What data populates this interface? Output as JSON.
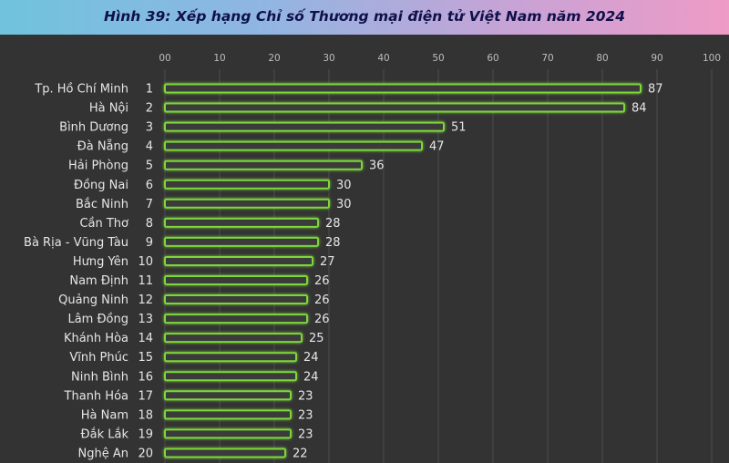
{
  "title": "Hình 39: Xếp hạng Chỉ số Thương mại điện tử Việt Nam năm 2024",
  "colors": {
    "header_start": "#6fc3dd",
    "header_end": "#ee9bc6",
    "background": "#333333",
    "bar_outline": "#7dd63a"
  },
  "chart_data": {
    "type": "bar",
    "orientation": "horizontal",
    "title": "Hình 39: Xếp hạng Chỉ số Thương mại điện tử Việt Nam năm 2024",
    "xlim": [
      0,
      100
    ],
    "x_ticks": [
      "00",
      "10",
      "20",
      "30",
      "40",
      "50",
      "60",
      "70",
      "80",
      "90",
      "100"
    ],
    "grid": true,
    "categories": [
      "Tp. Hồ Chí Minh",
      "Hà Nội",
      "Bình Dương",
      "Đà Nẵng",
      "Hải Phòng",
      "Đồng Nai",
      "Bắc Ninh",
      "Cần Thơ",
      "Bà Rịa - Vũng Tàu",
      "Hưng Yên",
      "Nam Định",
      "Quảng Ninh",
      "Lâm Đồng",
      "Khánh Hòa",
      "Vĩnh Phúc",
      "Ninh Bình",
      "Thanh Hóa",
      "Hà Nam",
      "Đắk Lắk",
      "Nghệ An"
    ],
    "ranks": [
      "1",
      "2",
      "3",
      "4",
      "5",
      "6",
      "7",
      "8",
      "9",
      "10",
      "11",
      "12",
      "13",
      "14",
      "15",
      "16",
      "17",
      "18",
      "19",
      "20"
    ],
    "values": [
      87,
      84,
      51,
      47,
      36,
      30,
      30,
      28,
      28,
      27,
      26,
      26,
      26,
      25,
      24,
      24,
      23,
      23,
      23,
      22
    ]
  }
}
